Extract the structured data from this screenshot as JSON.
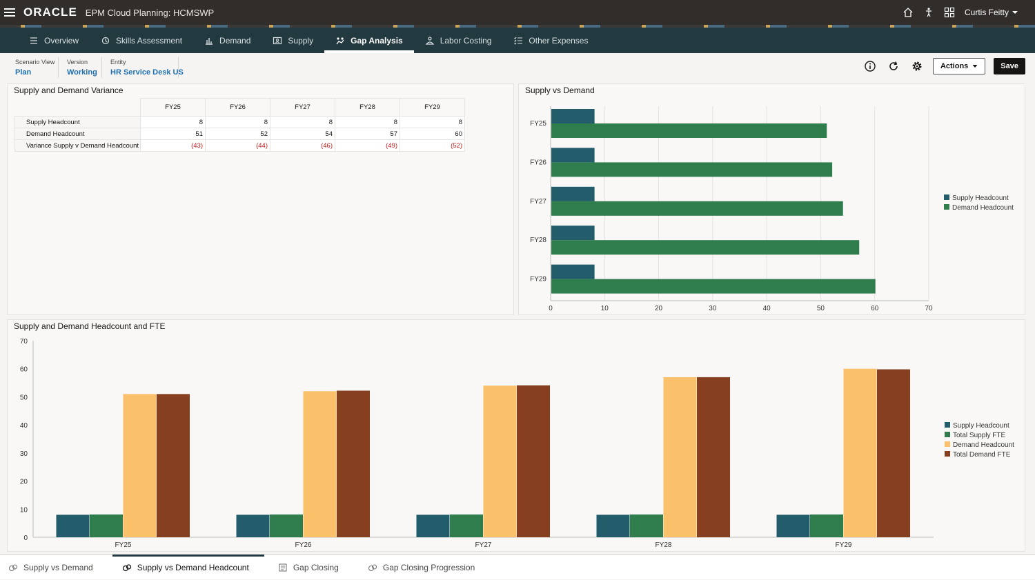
{
  "app": {
    "brand": "ORACLE",
    "title": "EPM Cloud Planning:  HCMSWP",
    "user": "Curtis Feitty"
  },
  "nav": {
    "tabs": [
      {
        "label": "Overview",
        "icon": "list-icon"
      },
      {
        "label": "Skills Assessment",
        "icon": "skills-icon"
      },
      {
        "label": "Demand",
        "icon": "bar-chart-icon"
      },
      {
        "label": "Supply",
        "icon": "person-card-icon"
      },
      {
        "label": "Gap Analysis",
        "icon": "gap-analysis-icon",
        "active": true
      },
      {
        "label": "Labor Costing",
        "icon": "labor-costing-icon"
      },
      {
        "label": "Other Expenses",
        "icon": "expenses-list-icon"
      }
    ]
  },
  "pov": {
    "scenario_label": "Scenario View",
    "scenario_value": "Plan",
    "version_label": "Version",
    "version_value": "Working",
    "entity_label": "Entity",
    "entity_value": "HR Service Desk US"
  },
  "toolbar": {
    "actions_label": "Actions",
    "save_label": "Save"
  },
  "variance_table": {
    "title": "Supply and Demand Variance",
    "columns": [
      "FY25",
      "FY26",
      "FY27",
      "FY28",
      "FY29"
    ],
    "rows": [
      {
        "label": "Supply Headcount",
        "values": [
          "8",
          "8",
          "8",
          "8",
          "8"
        ],
        "negative": false
      },
      {
        "label": "Demand Headcount",
        "values": [
          "51",
          "52",
          "54",
          "57",
          "60"
        ],
        "negative": false
      },
      {
        "label": "Variance Supply v Demand Headcount",
        "values": [
          "(43)",
          "(44)",
          "(46)",
          "(49)",
          "(52)"
        ],
        "negative": true
      }
    ]
  },
  "chart_data": [
    {
      "type": "bar",
      "orientation": "horizontal",
      "title": "Supply vs Demand",
      "categories": [
        "FY25",
        "FY26",
        "FY27",
        "FY28",
        "FY29"
      ],
      "series": [
        {
          "name": "Supply Headcount",
          "color": "#235d6b",
          "values": [
            8,
            8,
            8,
            8,
            8
          ]
        },
        {
          "name": "Demand Headcount",
          "color": "#2f7d4c",
          "values": [
            51,
            52,
            54,
            57,
            60
          ]
        }
      ],
      "xlim": [
        0,
        70
      ],
      "ticks": [
        0,
        10,
        20,
        30,
        40,
        50,
        60,
        70
      ],
      "grid": true,
      "legend": "right"
    },
    {
      "type": "bar",
      "orientation": "vertical",
      "title": "Supply and Demand Headcount and FTE",
      "categories": [
        "FY25",
        "FY26",
        "FY27",
        "FY28",
        "FY29"
      ],
      "series": [
        {
          "name": "Supply Headcount",
          "color": "#235d6b",
          "values": [
            8,
            8,
            8,
            8,
            8
          ]
        },
        {
          "name": "Total Supply FTE",
          "color": "#2f7d4c",
          "values": [
            8.1,
            8.1,
            8.1,
            8.1,
            8.1
          ]
        },
        {
          "name": "Demand Headcount",
          "color": "#fbc16a",
          "values": [
            51,
            52,
            54,
            57,
            60
          ]
        },
        {
          "name": "Total Demand FTE",
          "color": "#86401f",
          "values": [
            51,
            52.2,
            54.1,
            57,
            59.8
          ]
        }
      ],
      "ylim": [
        0,
        70
      ],
      "ticks": [
        0,
        10,
        20,
        30,
        40,
        50,
        60,
        70
      ],
      "grid": false,
      "legend": "right"
    }
  ],
  "bottom_tabs": [
    {
      "label": "Supply vs Demand",
      "active": false
    },
    {
      "label": "Supply vs Demand Headcount",
      "active": true
    },
    {
      "label": "Gap Closing",
      "active": false
    },
    {
      "label": "Gap Closing Progression",
      "active": false
    }
  ]
}
